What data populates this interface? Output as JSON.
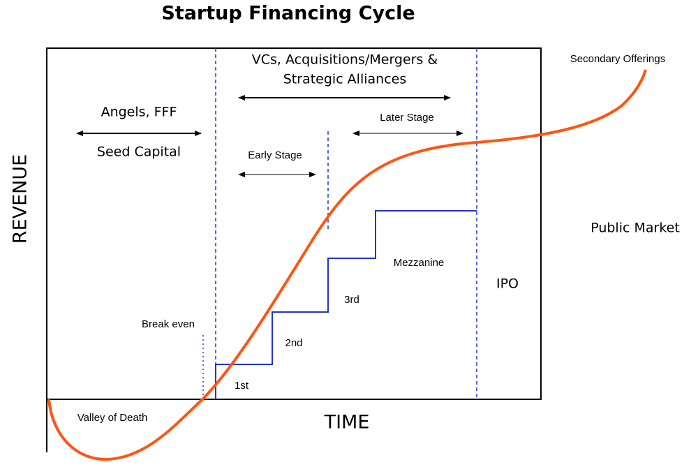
{
  "title": "Startup Financing Cycle",
  "axes": {
    "y_label": "REVENUE",
    "x_label": "TIME"
  },
  "phases": {
    "seed": {
      "top": "Angels, FFF",
      "bottom": "Seed Capital"
    },
    "vc": {
      "line1": "VCs, Acquisitions/Mergers &",
      "line2": "Strategic Alliances"
    },
    "early_stage": "Early Stage",
    "later_stage": "Later Stage",
    "secondary": "Secondary Offerings",
    "public_market": "Public Market",
    "ipo": "IPO"
  },
  "rounds": {
    "first": "1st",
    "second": "2nd",
    "third": "3rd",
    "mezzanine": "Mezzanine"
  },
  "annotations": {
    "break_even": "Break even",
    "valley": "Valley of Death"
  }
}
